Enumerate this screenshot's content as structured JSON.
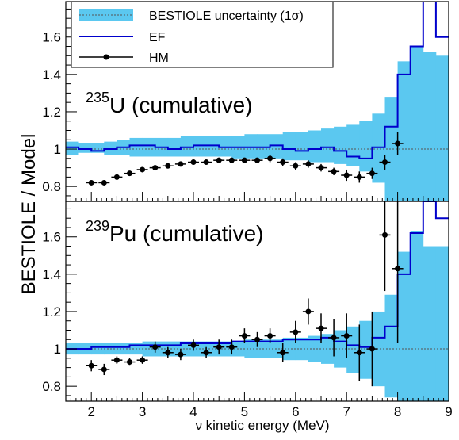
{
  "figure": {
    "ylabel": "BESTIOLE  /  Model",
    "xlabel": "ν kinetic energy (MeV)",
    "legend": {
      "band_label": "BESTIOLE uncertainty (1σ)",
      "ef_label": "EF",
      "hm_label": "HM"
    },
    "colors": {
      "band": "#5bc8f0",
      "ef": "#0000cc",
      "hm": "#000000"
    }
  },
  "chart_data": [
    {
      "type": "line",
      "isotope_mass": "235",
      "isotope_rest": "U (cumulative)",
      "xlim": [
        1.5,
        9.0
      ],
      "ylim": [
        0.72,
        1.79
      ],
      "xticks": [
        2,
        3,
        4,
        5,
        6,
        7,
        8,
        9
      ],
      "yticks": [
        0.8,
        1.0,
        1.2,
        1.4,
        1.6
      ],
      "ytick_labels": [
        "0.8",
        "1",
        "1.2",
        "1.4",
        "1.6"
      ],
      "grid": false,
      "legend_position": "top-left",
      "band": {
        "name": "BESTIOLE uncertainty (1σ)",
        "edges": [
          1.5,
          1.75,
          2.0,
          2.25,
          2.5,
          2.75,
          3.0,
          3.25,
          3.5,
          3.75,
          4.0,
          4.25,
          4.5,
          4.75,
          5.0,
          5.25,
          5.5,
          5.75,
          6.0,
          6.25,
          6.5,
          6.75,
          7.0,
          7.25,
          7.5,
          7.75,
          8.0,
          8.25,
          8.5,
          8.75,
          9.0
        ],
        "upper": [
          1.04,
          1.03,
          1.03,
          1.04,
          1.05,
          1.06,
          1.06,
          1.06,
          1.06,
          1.07,
          1.07,
          1.07,
          1.07,
          1.07,
          1.08,
          1.08,
          1.08,
          1.09,
          1.09,
          1.1,
          1.11,
          1.12,
          1.13,
          1.15,
          1.19,
          1.28,
          1.47,
          1.55,
          1.52,
          1.5
        ],
        "lower": [
          0.97,
          0.98,
          0.98,
          0.97,
          0.97,
          0.96,
          0.96,
          0.96,
          0.96,
          0.96,
          0.96,
          0.96,
          0.96,
          0.95,
          0.95,
          0.95,
          0.95,
          0.94,
          0.94,
          0.93,
          0.93,
          0.92,
          0.91,
          0.88,
          0.82,
          0.72,
          0.72,
          0.72,
          0.72,
          0.72
        ]
      },
      "ef": {
        "name": "EF",
        "edges": [
          1.5,
          1.75,
          2.0,
          2.25,
          2.5,
          2.75,
          3.0,
          3.25,
          3.5,
          3.75,
          4.0,
          4.25,
          4.5,
          4.75,
          5.0,
          5.25,
          5.5,
          5.75,
          6.0,
          6.25,
          6.5,
          6.75,
          7.0,
          7.25,
          7.5,
          7.75,
          8.0,
          8.25,
          8.5,
          8.75,
          9.0
        ],
        "values": [
          1.01,
          1.0,
          0.99,
          1.0,
          1.01,
          1.02,
          1.02,
          1.01,
          1.0,
          1.01,
          1.02,
          1.02,
          1.01,
          1.01,
          1.01,
          1.01,
          1.02,
          1.0,
          0.99,
          1.0,
          1.01,
          0.99,
          0.96,
          0.95,
          1.01,
          1.12,
          1.4,
          1.55,
          1.79,
          1.6
        ]
      },
      "hm": {
        "name": "HM",
        "x": [
          2.0,
          2.25,
          2.5,
          2.75,
          3.0,
          3.25,
          3.5,
          3.75,
          4.0,
          4.25,
          4.5,
          4.75,
          5.0,
          5.25,
          5.5,
          5.75,
          6.0,
          6.25,
          6.5,
          6.75,
          7.0,
          7.25,
          7.5,
          7.75,
          8.0
        ],
        "y": [
          0.82,
          0.82,
          0.85,
          0.87,
          0.89,
          0.9,
          0.91,
          0.92,
          0.93,
          0.93,
          0.94,
          0.94,
          0.94,
          0.94,
          0.95,
          0.93,
          0.91,
          0.92,
          0.9,
          0.88,
          0.86,
          0.85,
          0.87,
          0.93,
          1.03
        ],
        "err": [
          0.01,
          0.01,
          0.01,
          0.01,
          0.01,
          0.01,
          0.01,
          0.01,
          0.01,
          0.01,
          0.01,
          0.01,
          0.01,
          0.01,
          0.02,
          0.02,
          0.02,
          0.02,
          0.02,
          0.02,
          0.03,
          0.03,
          0.03,
          0.04,
          0.06
        ]
      }
    },
    {
      "type": "line",
      "isotope_mass": "239",
      "isotope_rest": "Pu (cumulative)",
      "xlim": [
        1.5,
        9.0
      ],
      "ylim": [
        0.72,
        1.79
      ],
      "xticks": [
        2,
        3,
        4,
        5,
        6,
        7,
        8,
        9
      ],
      "yticks": [
        0.8,
        1.0,
        1.2,
        1.4,
        1.6
      ],
      "ytick_labels": [
        "0.8",
        "1",
        "1.2",
        "1.4",
        "1.6"
      ],
      "grid": false,
      "band": {
        "name": "BESTIOLE uncertainty (1σ)",
        "edges": [
          1.5,
          1.75,
          2.0,
          2.25,
          2.5,
          2.75,
          3.0,
          3.25,
          3.5,
          3.75,
          4.0,
          4.25,
          4.5,
          4.75,
          5.0,
          5.25,
          5.5,
          5.75,
          6.0,
          6.25,
          6.5,
          6.75,
          7.0,
          7.25,
          7.5,
          7.75,
          8.0,
          8.25,
          8.5,
          8.75,
          9.0
        ],
        "upper": [
          1.03,
          1.03,
          1.03,
          1.03,
          1.03,
          1.03,
          1.04,
          1.04,
          1.04,
          1.04,
          1.04,
          1.04,
          1.04,
          1.04,
          1.05,
          1.05,
          1.05,
          1.06,
          1.06,
          1.07,
          1.08,
          1.1,
          1.12,
          1.15,
          1.2,
          1.29,
          1.52,
          1.63,
          1.55,
          1.55
        ],
        "lower": [
          0.97,
          0.97,
          0.97,
          0.97,
          0.97,
          0.97,
          0.96,
          0.96,
          0.96,
          0.96,
          0.96,
          0.96,
          0.96,
          0.96,
          0.95,
          0.95,
          0.95,
          0.94,
          0.94,
          0.93,
          0.92,
          0.9,
          0.87,
          0.84,
          0.8,
          0.74,
          0.72,
          0.72,
          0.72,
          0.72
        ]
      },
      "ef": {
        "name": "EF",
        "edges": [
          1.5,
          1.75,
          2.0,
          2.25,
          2.5,
          2.75,
          3.0,
          3.25,
          3.5,
          3.75,
          4.0,
          4.25,
          4.5,
          4.75,
          5.0,
          5.25,
          5.5,
          5.75,
          6.0,
          6.25,
          6.5,
          6.75,
          7.0,
          7.25,
          7.5,
          7.75,
          8.0,
          8.25,
          8.5,
          8.75,
          9.0
        ],
        "values": [
          1.0,
          1.0,
          1.01,
          1.01,
          1.01,
          1.02,
          1.02,
          1.02,
          1.02,
          1.03,
          1.03,
          1.03,
          1.03,
          1.04,
          1.04,
          1.04,
          1.04,
          1.05,
          1.05,
          1.05,
          1.06,
          1.04,
          1.02,
          1.01,
          1.06,
          1.12,
          1.4,
          1.62,
          1.79,
          1.7
        ]
      },
      "hm": {
        "name": "HM",
        "x": [
          2.0,
          2.25,
          2.5,
          2.75,
          3.0,
          3.25,
          3.5,
          3.75,
          4.0,
          4.25,
          4.5,
          4.75,
          5.0,
          5.25,
          5.5,
          5.75,
          6.0,
          6.25,
          6.5,
          6.75,
          7.0,
          7.25,
          7.5,
          7.75,
          8.0
        ],
        "y": [
          0.91,
          0.89,
          0.94,
          0.93,
          0.94,
          1.01,
          0.98,
          0.97,
          1.02,
          0.98,
          1.01,
          1.01,
          1.07,
          1.05,
          1.07,
          0.98,
          1.09,
          1.2,
          1.11,
          1.06,
          1.07,
          0.98,
          1.0,
          1.61,
          1.43
        ],
        "err": [
          0.03,
          0.03,
          0.02,
          0.02,
          0.02,
          0.03,
          0.03,
          0.03,
          0.03,
          0.03,
          0.04,
          0.04,
          0.04,
          0.04,
          0.04,
          0.05,
          0.06,
          0.07,
          0.08,
          0.1,
          0.12,
          0.15,
          0.2,
          0.3,
          0.4
        ]
      }
    }
  ]
}
